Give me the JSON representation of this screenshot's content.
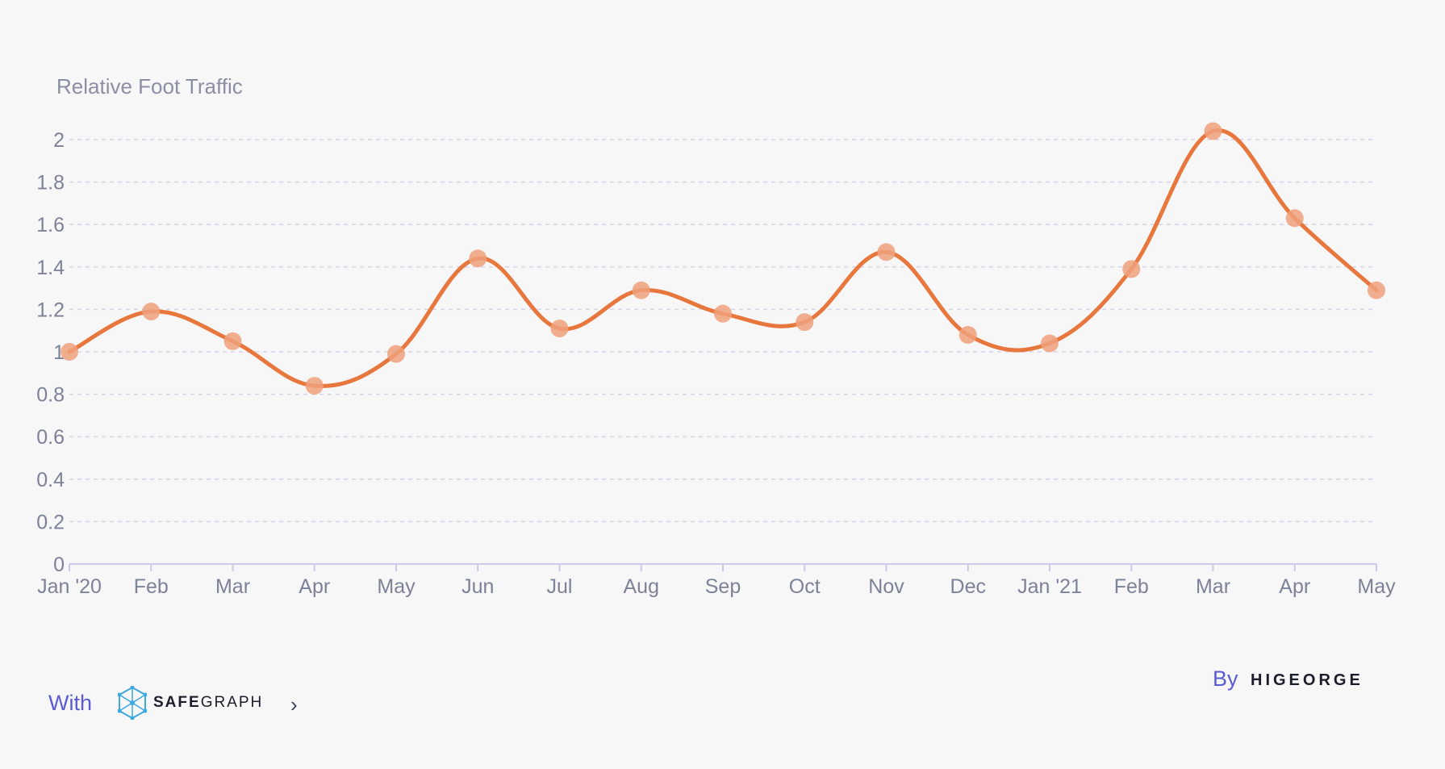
{
  "chart_data": {
    "type": "line",
    "ylabel": "Relative Foot Traffic",
    "categories": [
      "Jan '20",
      "Feb",
      "Mar",
      "Apr",
      "May",
      "Jun",
      "Jul",
      "Aug",
      "Sep",
      "Oct",
      "Nov",
      "Dec",
      "Jan '21",
      "Feb",
      "Mar",
      "Apr",
      "May"
    ],
    "series": [
      {
        "values": [
          1.0,
          1.19,
          1.05,
          0.84,
          0.99,
          1.44,
          1.11,
          1.29,
          1.18,
          1.14,
          1.47,
          1.08,
          1.04,
          1.39,
          2.04,
          1.63,
          1.29
        ]
      }
    ],
    "yticks": [
      "0",
      "0.2",
      "0.4",
      "0.6",
      "0.8",
      "1",
      "1.2",
      "1.4",
      "1.6",
      "1.8",
      "2"
    ],
    "ylim": [
      0,
      2
    ],
    "grid": true,
    "colors": {
      "line": "#e8773d",
      "marker": "#eea17c"
    }
  },
  "footer": {
    "with_label": "With",
    "safegraph_logo": {
      "icon": "safegraph-network-icon",
      "text_bold": "SAFE",
      "text_light": "GRAPH"
    },
    "chevron": "›",
    "by_label": "By",
    "higeorge_logo": "HIGEORGE"
  }
}
